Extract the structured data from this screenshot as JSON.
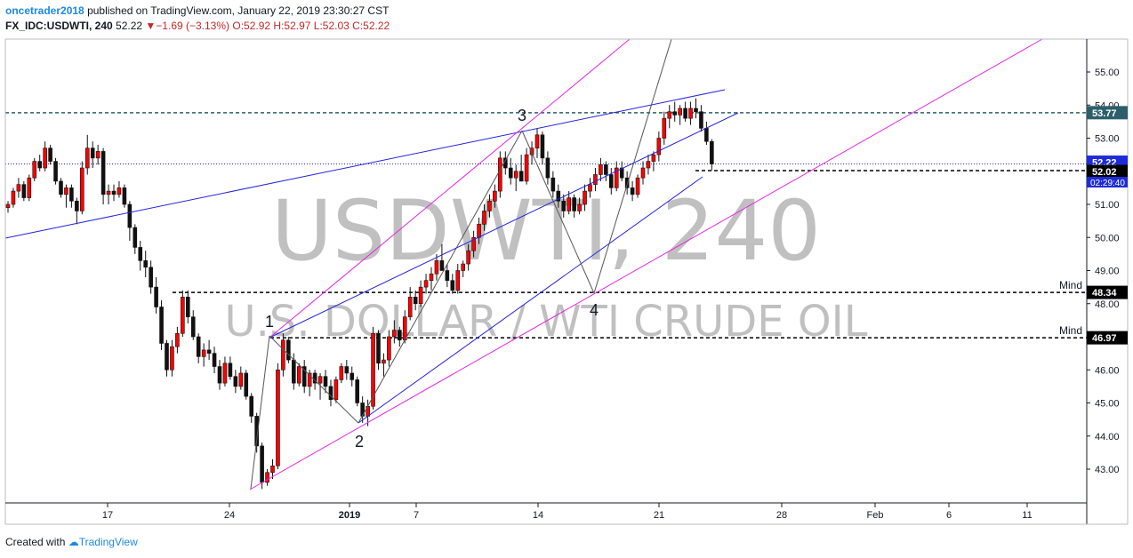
{
  "header": {
    "author": "oncetrader2018",
    "published": "published on TradingView.com, January 22, 2019 23:30:27 CST",
    "symbol": "FX_IDC:USDWTI, 240",
    "last": "52.22",
    "change": "−1.69 (−3.13%)",
    "ohlc": "O:52.92 H:52.97 L:52.03 C:52.22"
  },
  "watermark": {
    "symbol": "USDWTI, 240",
    "description": "U.S. DOLLAR / WTI CRUDE OIL"
  },
  "footer": {
    "created_with": "Created with",
    "brand": "TradingView"
  },
  "chart_data": {
    "type": "candlestick",
    "ylim": [
      42.2,
      55.7
    ],
    "y_ticks": [
      "43.00",
      "44.00",
      "45.00",
      "46.00",
      "47.00",
      "48.00",
      "49.00",
      "50.00",
      "51.00",
      "52.00",
      "53.00",
      "54.00",
      "55.00"
    ],
    "x_ticks": [
      "17",
      "24",
      "2019",
      "7",
      "14",
      "21",
      "28",
      "Feb",
      "6",
      "11"
    ],
    "price_labels": [
      {
        "value": 53.77,
        "text": "53.77",
        "color": "#2d5f6b"
      },
      {
        "value": 52.22,
        "text": "52.22",
        "color": "#1e2bd8"
      },
      {
        "value": 52.02,
        "text": "52.02",
        "color": "#000000"
      },
      {
        "value": 48.34,
        "text": "48.34",
        "color": "#000000"
      },
      {
        "value": 46.97,
        "text": "46.97",
        "color": "#000000"
      }
    ],
    "countdown": "02:29:40",
    "horizontal_levels": [
      {
        "value": 53.77,
        "style": "dashed",
        "color": "#2d5f6b"
      },
      {
        "value": 52.22,
        "style": "dotted",
        "color": "#1e2bd8"
      },
      {
        "value": 52.02,
        "style": "dashed",
        "color": "#000000"
      },
      {
        "value": 48.34,
        "label": "Mind",
        "style": "dashed",
        "color": "#000000"
      },
      {
        "value": 46.97,
        "label": "Mind",
        "style": "dashed",
        "color": "#000000"
      }
    ],
    "wave_labels": [
      "1",
      "2",
      "3",
      "4"
    ],
    "colors": {
      "up": "#ff0000",
      "down": "#111111",
      "trend_blue": "#2323e0",
      "trend_magenta": "#e626e6",
      "wave": "#555555"
    },
    "candles": [
      [
        50.9,
        51.1,
        50.75,
        51.0
      ],
      [
        51.0,
        51.5,
        50.9,
        51.4
      ],
      [
        51.4,
        51.8,
        51.2,
        51.6
      ],
      [
        51.6,
        51.7,
        51.1,
        51.2
      ],
      [
        51.2,
        51.9,
        51.1,
        51.8
      ],
      [
        51.8,
        52.4,
        51.7,
        52.3
      ],
      [
        52.3,
        52.5,
        52.0,
        52.1
      ],
      [
        52.1,
        52.9,
        52.0,
        52.7
      ],
      [
        52.7,
        52.8,
        52.2,
        52.3
      ],
      [
        52.3,
        52.4,
        51.6,
        51.7
      ],
      [
        51.7,
        51.8,
        51.2,
        51.3
      ],
      [
        51.3,
        51.6,
        50.9,
        51.5
      ],
      [
        51.5,
        51.6,
        50.9,
        51.1
      ],
      [
        51.1,
        51.2,
        50.4,
        50.8
      ],
      [
        50.8,
        52.3,
        50.7,
        52.1
      ],
      [
        52.1,
        53.1,
        51.9,
        52.7
      ],
      [
        52.7,
        52.9,
        52.1,
        52.4
      ],
      [
        52.4,
        52.8,
        52.2,
        52.6
      ],
      [
        52.6,
        52.7,
        51.0,
        51.3
      ],
      [
        51.3,
        51.6,
        51.0,
        51.4
      ],
      [
        51.4,
        51.6,
        51.1,
        51.3
      ],
      [
        51.3,
        51.7,
        51.2,
        51.5
      ],
      [
        51.5,
        51.6,
        50.9,
        51.0
      ],
      [
        51.0,
        51.1,
        49.9,
        50.3
      ],
      [
        50.3,
        50.4,
        49.5,
        49.7
      ],
      [
        49.7,
        49.9,
        49.0,
        49.3
      ],
      [
        49.3,
        49.6,
        48.8,
        49.1
      ],
      [
        49.1,
        49.3,
        48.3,
        48.5
      ],
      [
        48.5,
        48.8,
        47.7,
        47.9
      ],
      [
        47.9,
        48.1,
        46.6,
        46.8
      ],
      [
        46.8,
        46.9,
        45.8,
        46.0
      ],
      [
        46.0,
        46.9,
        45.8,
        46.7
      ],
      [
        46.7,
        47.3,
        46.5,
        47.1
      ],
      [
        47.1,
        48.4,
        47.0,
        48.2
      ],
      [
        48.2,
        48.4,
        47.4,
        47.6
      ],
      [
        47.6,
        47.8,
        46.9,
        47.0
      ],
      [
        47.0,
        47.1,
        46.2,
        46.4
      ],
      [
        46.4,
        46.8,
        46.1,
        46.6
      ],
      [
        46.6,
        46.9,
        46.3,
        46.5
      ],
      [
        46.5,
        46.7,
        45.9,
        46.1
      ],
      [
        46.1,
        46.3,
        45.4,
        45.6
      ],
      [
        45.6,
        46.4,
        45.5,
        46.2
      ],
      [
        46.2,
        46.4,
        45.7,
        45.8
      ],
      [
        45.8,
        46.0,
        45.3,
        45.5
      ],
      [
        45.5,
        46.1,
        45.4,
        45.9
      ],
      [
        45.9,
        46.0,
        45.1,
        45.2
      ],
      [
        45.2,
        45.3,
        44.4,
        44.6
      ],
      [
        44.6,
        44.7,
        43.5,
        43.7
      ],
      [
        43.7,
        43.8,
        42.4,
        42.6
      ],
      [
        42.6,
        43.0,
        42.5,
        42.9
      ],
      [
        42.9,
        43.3,
        42.7,
        43.1
      ],
      [
        43.1,
        46.2,
        43.0,
        46.0
      ],
      [
        46.0,
        47.1,
        45.8,
        46.9
      ],
      [
        46.9,
        47.0,
        46.2,
        46.3
      ],
      [
        46.3,
        46.5,
        45.4,
        45.6
      ],
      [
        45.6,
        46.2,
        45.5,
        46.1
      ],
      [
        46.1,
        46.3,
        45.3,
        45.5
      ],
      [
        45.5,
        46.0,
        45.2,
        45.9
      ],
      [
        45.9,
        46.0,
        45.4,
        45.6
      ],
      [
        45.6,
        45.9,
        45.1,
        45.8
      ],
      [
        45.8,
        46.0,
        45.3,
        45.5
      ],
      [
        45.5,
        45.7,
        44.9,
        45.1
      ],
      [
        45.1,
        45.8,
        45.0,
        45.7
      ],
      [
        45.7,
        46.2,
        45.6,
        46.1
      ],
      [
        46.1,
        46.3,
        45.7,
        45.9
      ],
      [
        45.9,
        46.1,
        45.5,
        45.7
      ],
      [
        45.7,
        45.8,
        44.9,
        45.0
      ],
      [
        45.0,
        45.2,
        44.4,
        44.6
      ],
      [
        44.6,
        45.1,
        44.3,
        44.9
      ],
      [
        44.9,
        47.3,
        44.8,
        47.1
      ],
      [
        47.1,
        47.2,
        46.0,
        46.2
      ],
      [
        46.2,
        46.5,
        45.8,
        46.3
      ],
      [
        46.3,
        47.2,
        46.1,
        47.0
      ],
      [
        47.0,
        47.5,
        46.8,
        47.2
      ],
      [
        47.2,
        47.3,
        46.7,
        46.9
      ],
      [
        46.9,
        47.8,
        46.8,
        47.6
      ],
      [
        47.6,
        48.5,
        47.5,
        48.2
      ],
      [
        48.2,
        48.4,
        47.8,
        48.0
      ],
      [
        48.0,
        48.7,
        47.9,
        48.5
      ],
      [
        48.5,
        48.9,
        48.3,
        48.7
      ],
      [
        48.7,
        49.1,
        48.4,
        48.9
      ],
      [
        48.9,
        49.5,
        48.7,
        49.3
      ],
      [
        49.3,
        49.8,
        49.1,
        49.0
      ],
      [
        49.0,
        49.2,
        48.5,
        48.7
      ],
      [
        48.7,
        48.9,
        48.3,
        48.4
      ],
      [
        48.4,
        49.2,
        48.3,
        49.0
      ],
      [
        49.0,
        49.3,
        48.8,
        49.2
      ],
      [
        49.2,
        49.8,
        49.0,
        49.6
      ],
      [
        49.6,
        50.2,
        49.4,
        50.0
      ],
      [
        50.0,
        50.6,
        49.8,
        50.4
      ],
      [
        50.4,
        51.0,
        50.2,
        50.8
      ],
      [
        50.8,
        51.3,
        50.6,
        51.1
      ],
      [
        51.1,
        51.6,
        50.9,
        51.4
      ],
      [
        51.4,
        52.6,
        51.2,
        52.4
      ],
      [
        52.4,
        52.6,
        51.9,
        52.1
      ],
      [
        52.1,
        52.4,
        51.6,
        51.8
      ],
      [
        51.8,
        52.2,
        51.4,
        52.0
      ],
      [
        52.0,
        52.5,
        51.7,
        51.7
      ],
      [
        51.7,
        52.7,
        51.6,
        52.5
      ],
      [
        52.5,
        52.9,
        52.2,
        52.7
      ],
      [
        52.7,
        53.3,
        52.4,
        53.1
      ],
      [
        53.1,
        53.2,
        52.2,
        52.4
      ],
      [
        52.4,
        52.6,
        51.6,
        51.8
      ],
      [
        51.8,
        52.0,
        51.2,
        51.4
      ],
      [
        51.4,
        51.6,
        50.9,
        51.1
      ],
      [
        51.1,
        51.3,
        50.6,
        50.8
      ],
      [
        50.8,
        51.4,
        50.7,
        51.2
      ],
      [
        51.2,
        51.3,
        50.6,
        50.8
      ],
      [
        50.8,
        51.2,
        50.7,
        51.0
      ],
      [
        51.0,
        51.6,
        50.8,
        51.4
      ],
      [
        51.4,
        51.8,
        51.2,
        51.6
      ],
      [
        51.6,
        52.1,
        51.4,
        51.9
      ],
      [
        51.9,
        52.4,
        51.7,
        52.2
      ],
      [
        52.2,
        52.3,
        51.7,
        51.9
      ],
      [
        51.9,
        52.1,
        51.3,
        51.5
      ],
      [
        51.5,
        52.3,
        51.4,
        52.1
      ],
      [
        52.1,
        52.3,
        51.7,
        51.8
      ],
      [
        51.8,
        52.0,
        51.3,
        51.5
      ],
      [
        51.5,
        51.7,
        51.1,
        51.3
      ],
      [
        51.3,
        51.9,
        51.2,
        51.8
      ],
      [
        51.8,
        52.3,
        51.6,
        52.1
      ],
      [
        52.1,
        52.5,
        51.9,
        52.3
      ],
      [
        52.3,
        52.6,
        52.0,
        52.5
      ],
      [
        52.5,
        53.2,
        52.3,
        53.0
      ],
      [
        53.0,
        53.8,
        52.8,
        53.6
      ],
      [
        53.6,
        54.0,
        53.3,
        53.8
      ],
      [
        53.8,
        54.1,
        53.5,
        53.7
      ],
      [
        53.7,
        54.0,
        53.4,
        53.9
      ],
      [
        53.9,
        54.1,
        53.5,
        53.6
      ],
      [
        53.6,
        54.1,
        53.4,
        53.9
      ],
      [
        53.9,
        54.2,
        53.6,
        53.8
      ],
      [
        53.8,
        54.0,
        53.2,
        53.3
      ],
      [
        53.3,
        53.5,
        52.8,
        52.9
      ],
      [
        52.9,
        52.97,
        52.03,
        52.22
      ]
    ]
  }
}
